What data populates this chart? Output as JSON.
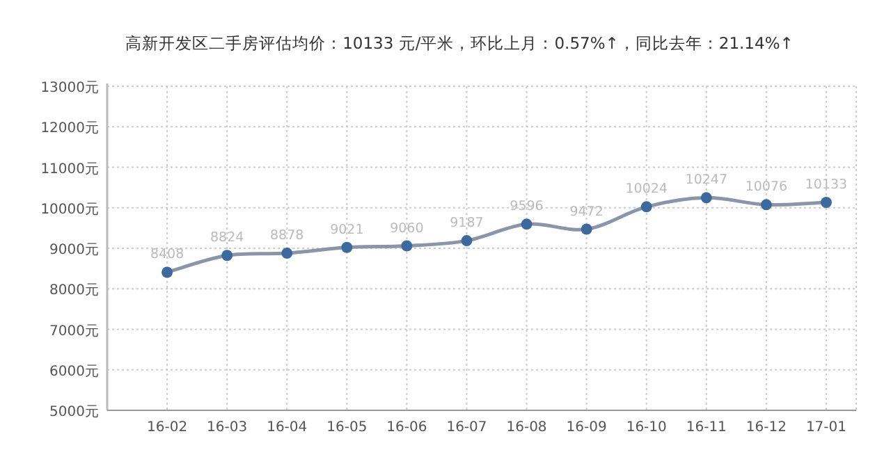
{
  "chart_data": {
    "type": "line",
    "title": "高新开发区二手房评估均价：10133 元/平米，环比上月：0.57%↑，同比去年：21.14%↑",
    "categories": [
      "16-02",
      "16-03",
      "16-04",
      "16-05",
      "16-06",
      "16-07",
      "16-08",
      "16-09",
      "16-10",
      "16-11",
      "16-12",
      "17-01"
    ],
    "series": [
      {
        "color": "#3d6a9e",
        "values": [
          8408,
          8824,
          8878,
          9021,
          9060,
          9187,
          9596,
          9472,
          10024,
          10247,
          10076,
          10133
        ]
      }
    ],
    "ylim": [
      5000,
      13000
    ],
    "yticks": [
      {
        "value": 5000,
        "label": "5000元"
      },
      {
        "value": 6000,
        "label": "6000元"
      },
      {
        "value": 7000,
        "label": "7000元"
      },
      {
        "value": 8000,
        "label": "8000元"
      },
      {
        "value": 9000,
        "label": "9000元"
      },
      {
        "value": 10000,
        "label": "10000元"
      },
      {
        "value": 11000,
        "label": "11000元"
      },
      {
        "value": 12000,
        "label": "12000元"
      },
      {
        "value": 13000,
        "label": "13000元"
      }
    ],
    "grid": true,
    "marker": "circle",
    "data_labels": true
  }
}
